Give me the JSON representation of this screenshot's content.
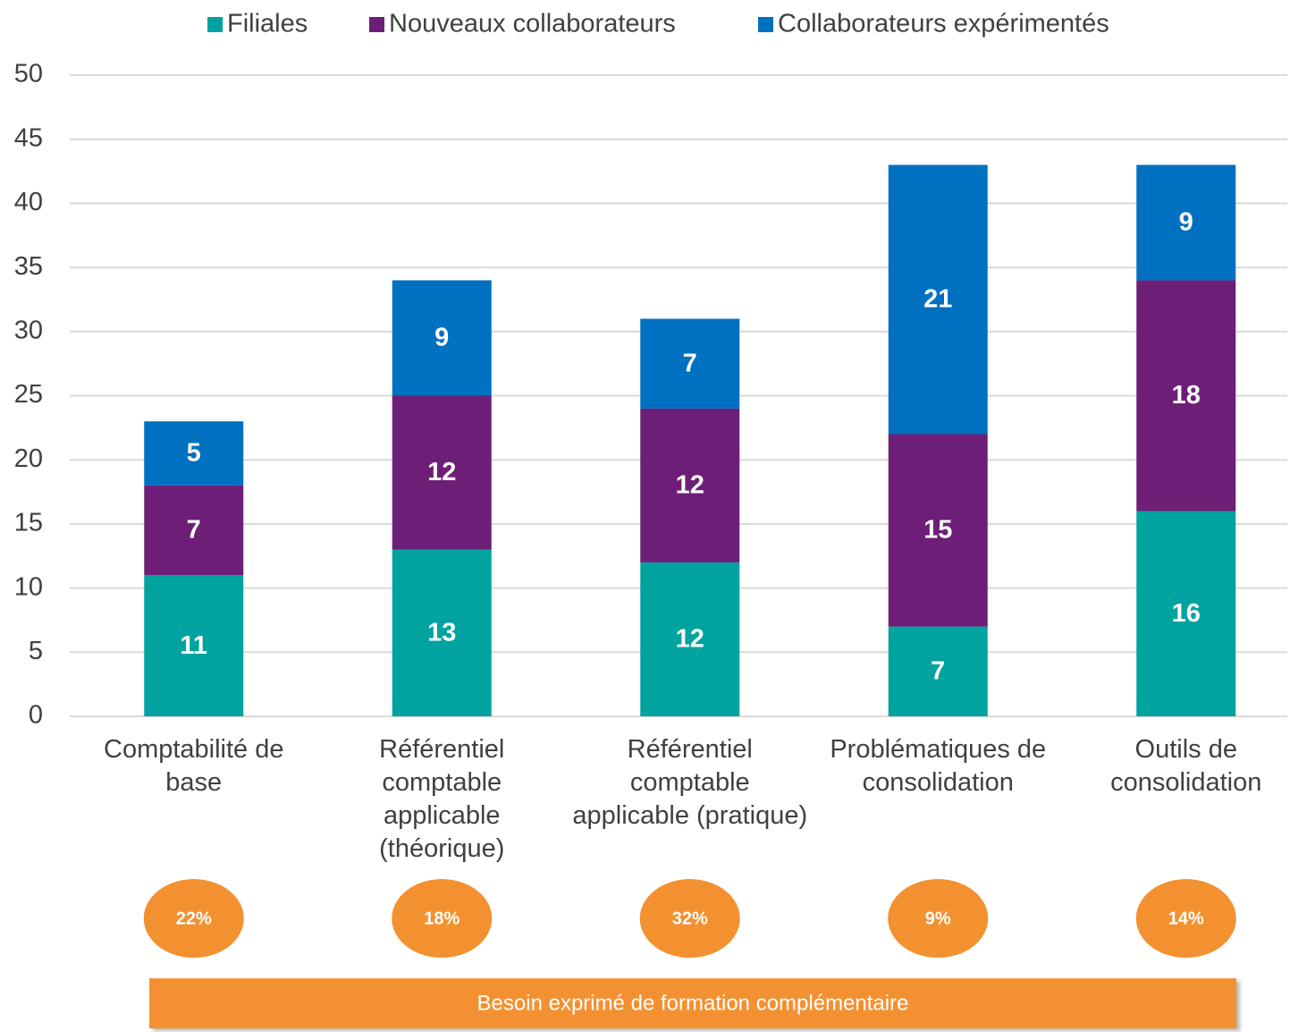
{
  "chart_data": {
    "type": "stacked_bar",
    "categories": [
      "Comptabilité de base",
      "Référentiel comptable applicable (théorique)",
      "Référentiel comptable applicable (pratique)",
      "Problématiques de consolidation",
      "Outils de consolidation"
    ],
    "series": [
      {
        "name": "Filiales",
        "color": "#00a39f",
        "values": [
          11,
          13,
          12,
          7,
          16
        ]
      },
      {
        "name": "Nouveaux collaborateurs",
        "color": "#6d1f77",
        "values": [
          7,
          12,
          12,
          15,
          18
        ]
      },
      {
        "name": "Collaborateurs expérimentés",
        "color": "#0070c0",
        "values": [
          5,
          9,
          7,
          21,
          9
        ]
      }
    ],
    "ylim": [
      0,
      50
    ],
    "yticks": [
      0,
      5,
      10,
      15,
      20,
      25,
      30,
      35,
      40,
      45,
      50
    ],
    "grid": true,
    "legend": "top",
    "percentages": {
      "color": "#f39130",
      "values": [
        22,
        18,
        32,
        9,
        14
      ],
      "value_labels": [
        "22%",
        "18%",
        "32%",
        "9%",
        "14%"
      ]
    },
    "banner": "Besoin exprimé de formation complémentaire"
  }
}
